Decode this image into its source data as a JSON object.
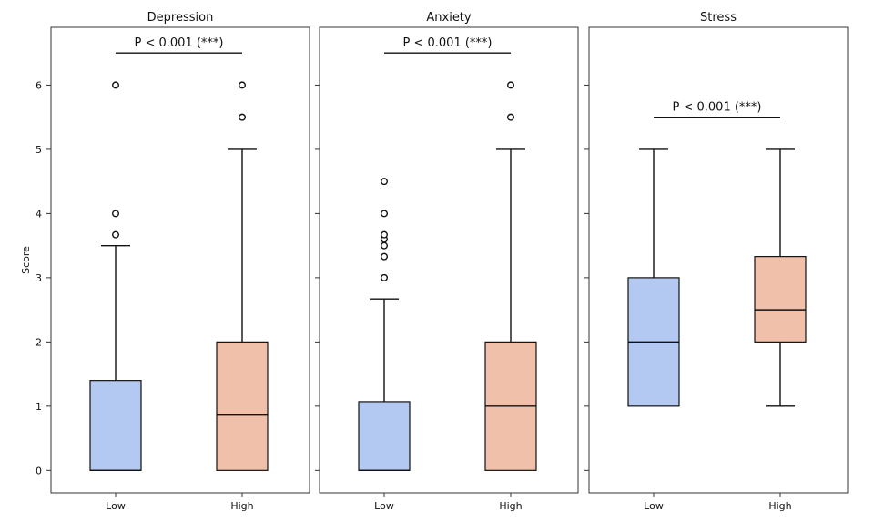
{
  "chart_data": {
    "type": "box",
    "ylabel": "Score",
    "ylim": [
      -0.35,
      6.9
    ],
    "yticks": [
      0,
      1,
      2,
      3,
      4,
      5,
      6
    ],
    "categories": [
      "Low",
      "High"
    ],
    "colors": {
      "Low": "#b3c9f2",
      "High": "#f0c0aa"
    },
    "panels": [
      {
        "title": "Depression",
        "significance": "P < 0.001 (***)",
        "significance_y": 6.5,
        "boxes": [
          {
            "group": "Low",
            "whisker_low": 0,
            "q1": 0,
            "median": 0,
            "q3": 1.4,
            "whisker_high": 3.5,
            "outliers": [
              3.67,
              4.0,
              6.0
            ]
          },
          {
            "group": "High",
            "whisker_low": 0,
            "q1": 0,
            "median": 0.86,
            "q3": 2.0,
            "whisker_high": 5.0,
            "outliers": [
              5.5,
              6.0
            ]
          }
        ]
      },
      {
        "title": "Anxiety",
        "significance": "P < 0.001 (***)",
        "significance_y": 6.5,
        "boxes": [
          {
            "group": "Low",
            "whisker_low": 0,
            "q1": 0,
            "median": 0,
            "q3": 1.07,
            "whisker_high": 2.67,
            "outliers": [
              3.0,
              3.33,
              3.5,
              3.6,
              3.67,
              4.0,
              4.5
            ]
          },
          {
            "group": "High",
            "whisker_low": 0,
            "q1": 0,
            "median": 1.0,
            "q3": 2.0,
            "whisker_high": 5.0,
            "outliers": [
              5.5,
              6.0
            ]
          }
        ]
      },
      {
        "title": "Stress",
        "significance": "P < 0.001 (***)",
        "significance_y": 5.5,
        "boxes": [
          {
            "group": "Low",
            "whisker_low": 1.0,
            "q1": 1.0,
            "median": 2.0,
            "q3": 3.0,
            "whisker_high": 5.0,
            "outliers": []
          },
          {
            "group": "High",
            "whisker_low": 1.0,
            "q1": 2.0,
            "median": 2.5,
            "q3": 3.33,
            "whisker_high": 5.0,
            "outliers": []
          }
        ]
      }
    ]
  }
}
